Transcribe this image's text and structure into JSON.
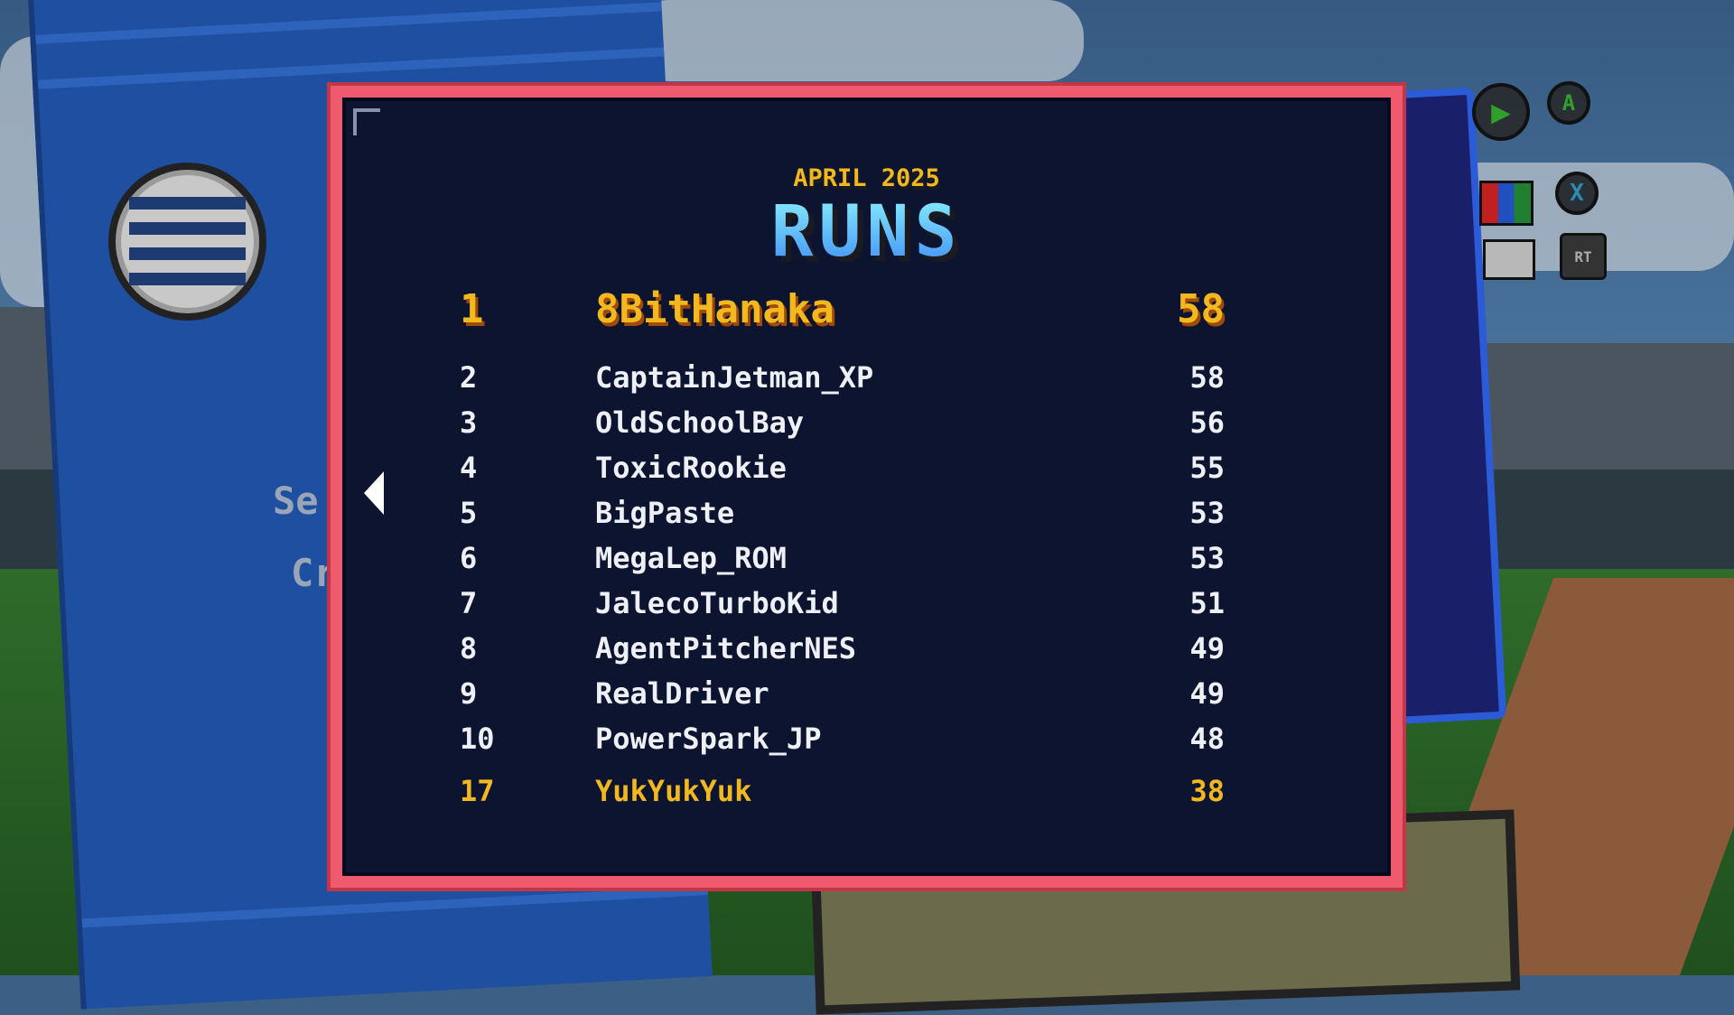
{
  "leaderboard": {
    "period": "APRIL 2025",
    "category": "RUNS",
    "top": {
      "rank": "1",
      "name": "8BitHanaka",
      "score": "58"
    },
    "rows": [
      {
        "rank": "2",
        "name": "CaptainJetman_XP",
        "score": "58"
      },
      {
        "rank": "3",
        "name": "OldSchoolBay",
        "score": "56"
      },
      {
        "rank": "4",
        "name": "ToxicRookie",
        "score": "55"
      },
      {
        "rank": "5",
        "name": "BigPaste",
        "score": "53"
      },
      {
        "rank": "6",
        "name": "MegaLep_ROM",
        "score": "53"
      },
      {
        "rank": "7",
        "name": "JalecoTurboKid",
        "score": "51"
      },
      {
        "rank": "8",
        "name": "AgentPitcherNES",
        "score": "49"
      },
      {
        "rank": "9",
        "name": "RealDriver",
        "score": "49"
      },
      {
        "rank": "10",
        "name": "PowerSpark_JP",
        "score": "48"
      }
    ],
    "player": {
      "rank": "17",
      "name": "YukYukYuk",
      "score": "38"
    }
  },
  "controls": {
    "a": "A",
    "x": "X",
    "rt": "RT"
  },
  "background": {
    "side_text_1": "Se",
    "side_text_2": "Cr"
  },
  "colors": {
    "frame": "#f05a6e",
    "panel": "#0c1430",
    "gold": "#f2b820",
    "title_top": "#8cf2ff",
    "title_bottom": "#3c8af5"
  }
}
